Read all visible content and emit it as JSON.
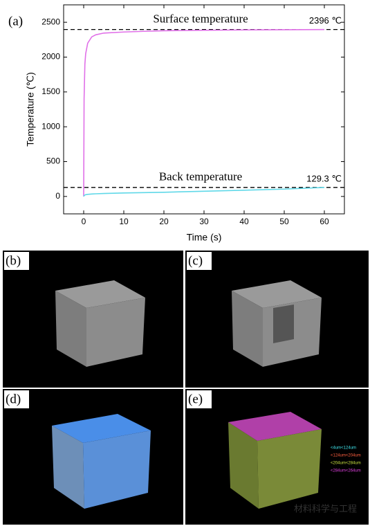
{
  "chart_data": {
    "type": "line",
    "panel_label": "(a)",
    "x_label": "Time (s)",
    "y_label": "Temperature (℃)",
    "x": [
      0,
      0.1,
      0.3,
      0.5,
      1,
      2,
      3,
      5,
      10,
      15,
      20,
      30,
      40,
      50,
      60
    ],
    "series": [
      {
        "name": "Surface",
        "color": "#e070e8",
        "values": [
          0,
          1400,
          1900,
          2050,
          2200,
          2290,
          2320,
          2345,
          2360,
          2370,
          2378,
          2385,
          2390,
          2393,
          2396
        ]
      },
      {
        "name": "Back",
        "color": "#5fd8e8",
        "values": [
          0,
          10,
          20,
          25,
          30,
          35,
          38,
          42,
          50,
          55,
          60,
          75,
          90,
          105,
          129.3
        ]
      }
    ],
    "reference_lines": [
      {
        "value": 2396,
        "label": "2396 ℃",
        "text": "Surface temperature"
      },
      {
        "value": 129.3,
        "label": "129.3 ℃",
        "text": "Back temperature"
      }
    ],
    "xlim": [
      -5,
      65
    ],
    "ylim": [
      -250,
      2750
    ],
    "xticks": [
      0,
      10,
      20,
      30,
      40,
      50,
      60
    ],
    "yticks": [
      0,
      500,
      1000,
      1500,
      2000,
      2500
    ]
  },
  "panels": [
    {
      "label": "(b)"
    },
    {
      "label": "(c)"
    },
    {
      "label": "(d)"
    },
    {
      "label": "(e)",
      "legend": [
        {
          "text": "<4um<124um",
          "color": "#40e8f0"
        },
        {
          "text": "<124um<204um",
          "color": "#ff6040"
        },
        {
          "text": "<204um<284um",
          "color": "#c8e040"
        },
        {
          "text": "<284um<264um",
          "color": "#e040e0"
        }
      ]
    }
  ],
  "watermark": "材料科学与工程"
}
